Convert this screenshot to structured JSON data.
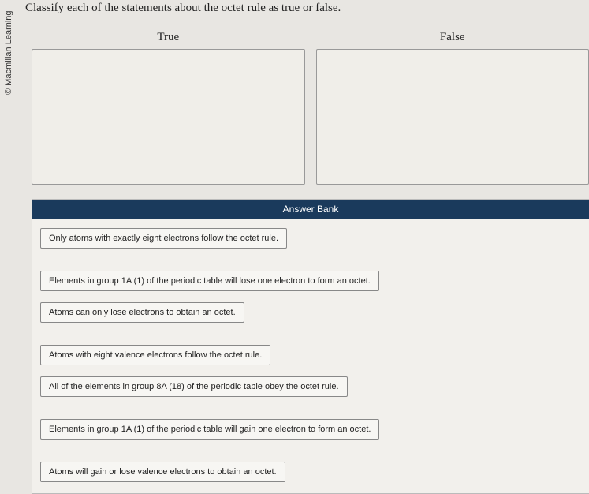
{
  "copyright": "© Macmillan Learning",
  "question": "Classify each of the statements about the octet rule as true or false.",
  "zones": {
    "true": {
      "label": "True"
    },
    "false": {
      "label": "False"
    }
  },
  "answerBank": {
    "header": "Answer Bank",
    "items": [
      "Only atoms with exactly eight electrons follow the octet rule.",
      "Elements in group 1A (1) of the periodic table will lose one electron to form an octet.",
      "Atoms can only lose electrons to obtain an octet.",
      "Atoms with eight valence electrons follow the octet rule.",
      "All of the elements in group 8A (18) of the periodic table obey the octet rule.",
      "Elements in group 1A (1) of the periodic table will gain one electron to form an octet.",
      "Atoms will gain or lose valence electrons to obtain an octet."
    ]
  },
  "colors": {
    "pageBg": "#e8e6e2",
    "zoneBg": "#f0eee9",
    "zoneBorder": "#999999",
    "bankHeaderBg": "#1a3a5c",
    "bankHeaderText": "#ffffff",
    "chipBg": "#f7f6f3",
    "chipBorder": "#888888",
    "textColor": "#222222"
  }
}
